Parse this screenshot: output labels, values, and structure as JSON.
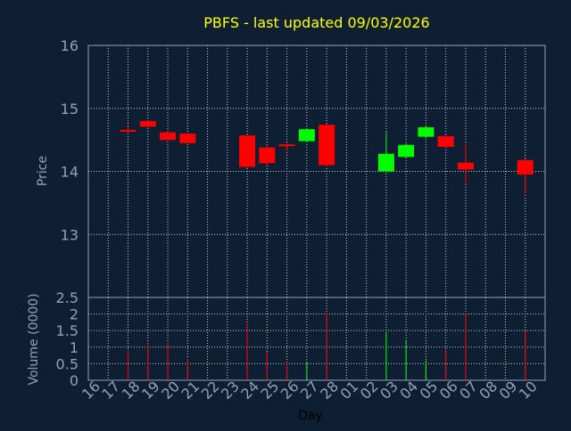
{
  "chart_data": {
    "type": "candlestick",
    "title": "PBFS - last updated 09/03/2026",
    "xlabel": "Day",
    "price_ylabel": "Price",
    "volume_ylabel": "Volume (0000)",
    "price_ylim": [
      12.0,
      16.0
    ],
    "price_yticks": [
      13,
      14,
      15,
      16
    ],
    "volume_ylim": [
      0,
      2.5
    ],
    "volume_yticks": [
      "0",
      "0.5",
      "1",
      "1.5",
      "2",
      "2.5"
    ],
    "grid": true,
    "x_ticks": [
      "16",
      "17",
      "18",
      "19",
      "20",
      "21",
      "22",
      "23",
      "24",
      "25",
      "26",
      "27",
      "28",
      "01",
      "02",
      "03",
      "04",
      "05",
      "06",
      "07",
      "08",
      "09",
      "10"
    ],
    "candles": [
      {
        "day": "17",
        "open": 14.66,
        "close": 14.63,
        "high": 14.71,
        "low": 14.61,
        "volume": 0.9
      },
      {
        "day": "18",
        "open": 14.8,
        "close": 14.71,
        "high": 14.82,
        "low": 14.69,
        "volume": 1.15
      },
      {
        "day": "19",
        "open": 14.62,
        "close": 14.5,
        "high": 14.64,
        "low": 14.48,
        "volume": 1.15
      },
      {
        "day": "20",
        "open": 14.6,
        "close": 14.45,
        "high": 14.62,
        "low": 14.43,
        "volume": 0.65
      },
      {
        "day": "23",
        "open": 14.57,
        "close": 14.07,
        "high": 14.59,
        "low": 14.05,
        "volume": 1.72
      },
      {
        "day": "24",
        "open": 14.38,
        "close": 14.13,
        "high": 14.4,
        "low": 14.1,
        "volume": 0.86
      },
      {
        "day": "25",
        "open": 14.43,
        "close": 14.4,
        "high": 14.45,
        "low": 14.32,
        "volume": 0.55
      },
      {
        "day": "26",
        "open": 14.48,
        "close": 14.67,
        "high": 14.69,
        "low": 14.46,
        "volume": 0.55
      },
      {
        "day": "27",
        "open": 14.74,
        "close": 14.1,
        "high": 14.76,
        "low": 14.08,
        "volume": 2.05
      },
      {
        "day": "02",
        "open": 14.0,
        "close": 14.28,
        "high": 14.62,
        "low": 13.98,
        "volume": 1.42
      },
      {
        "day": "03",
        "open": 14.23,
        "close": 14.42,
        "high": 14.44,
        "low": 14.21,
        "volume": 1.2
      },
      {
        "day": "04",
        "open": 14.55,
        "close": 14.7,
        "high": 14.72,
        "low": 14.53,
        "volume": 0.6
      },
      {
        "day": "05",
        "open": 14.56,
        "close": 14.39,
        "high": 14.58,
        "low": 14.37,
        "volume": 0.92
      },
      {
        "day": "06",
        "open": 14.14,
        "close": 14.03,
        "high": 14.45,
        "low": 13.8,
        "volume": 2.0
      },
      {
        "day": "09",
        "open": 14.18,
        "close": 13.95,
        "high": 14.2,
        "low": 13.65,
        "volume": 1.48
      }
    ],
    "colors": {
      "background": "#0f1f33",
      "axis": "#8fa3b8",
      "grid": "#c8d0d8",
      "title": "#ffff00",
      "label": "#8fa3b8",
      "up": "#00ff00",
      "down": "#ff0000"
    }
  }
}
